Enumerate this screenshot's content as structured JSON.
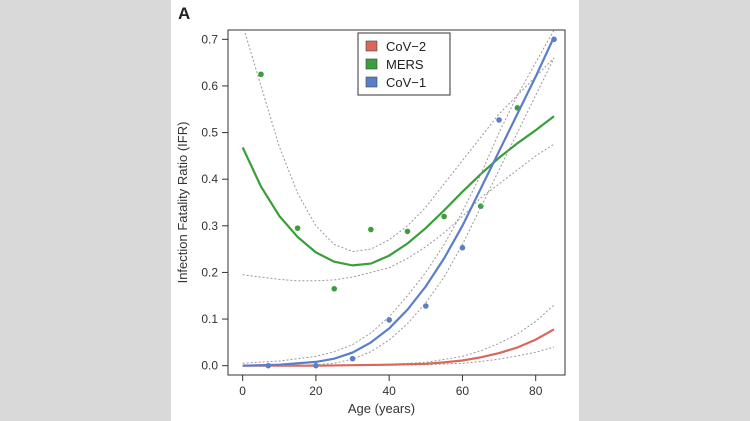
{
  "panel_label": "A",
  "chart_data": {
    "type": "scatter",
    "title": "",
    "xlabel": "Age (years)",
    "ylabel": "Infection Fatality Ratio (IFR)",
    "xlim": [
      -4,
      88
    ],
    "ylim": [
      -0.02,
      0.72
    ],
    "xticks": [
      0,
      20,
      40,
      60,
      80
    ],
    "yticks": [
      0.0,
      0.1,
      0.2,
      0.3,
      0.4,
      0.5,
      0.6,
      0.7
    ],
    "ytick_labels": [
      "0.0",
      "0.1",
      "0.2",
      "0.3",
      "0.4",
      "0.5",
      "0.6",
      "0.7"
    ],
    "legend_position": "top-center",
    "grid": false,
    "series": [
      {
        "name": "CoV−2",
        "color": "#d9675a",
        "points": [],
        "fit": {
          "x": [
            0,
            10,
            20,
            30,
            40,
            50,
            55,
            60,
            65,
            70,
            75,
            80,
            85
          ],
          "y": [
            0.0,
            0.0,
            0.0,
            0.001,
            0.002,
            0.004,
            0.007,
            0.011,
            0.018,
            0.027,
            0.039,
            0.056,
            0.078
          ]
        },
        "ci_upper": {
          "x": [
            0,
            20,
            40,
            50,
            60,
            65,
            70,
            75,
            80,
            85
          ],
          "y": [
            0.0,
            0.0,
            0.003,
            0.007,
            0.02,
            0.032,
            0.048,
            0.068,
            0.095,
            0.13
          ]
        },
        "ci_lower": {
          "x": [
            0,
            20,
            40,
            50,
            60,
            65,
            70,
            75,
            80,
            85
          ],
          "y": [
            0.0,
            0.0,
            0.001,
            0.002,
            0.005,
            0.009,
            0.014,
            0.021,
            0.029,
            0.04
          ]
        }
      },
      {
        "name": "MERS",
        "color": "#3a9e3a",
        "points": {
          "x": [
            5,
            15,
            25,
            35,
            45,
            55,
            65,
            75
          ],
          "y": [
            0.625,
            0.295,
            0.165,
            0.292,
            0.288,
            0.32,
            0.342,
            0.553
          ]
        },
        "fit": {
          "x": [
            0,
            5,
            10,
            15,
            20,
            25,
            30,
            35,
            40,
            45,
            50,
            55,
            60,
            65,
            70,
            75,
            80,
            85
          ],
          "y": [
            0.468,
            0.384,
            0.321,
            0.276,
            0.243,
            0.223,
            0.215,
            0.219,
            0.236,
            0.262,
            0.295,
            0.333,
            0.373,
            0.411,
            0.446,
            0.477,
            0.505,
            0.535
          ]
        },
        "ci_upper": {
          "x": [
            0,
            5,
            10,
            15,
            20,
            25,
            30,
            35,
            40,
            45,
            50,
            55,
            60,
            65,
            70,
            75,
            80,
            85
          ],
          "y": [
            0.73,
            0.6,
            0.47,
            0.37,
            0.3,
            0.26,
            0.245,
            0.25,
            0.27,
            0.3,
            0.34,
            0.39,
            0.44,
            0.49,
            0.54,
            0.58,
            0.62,
            0.66
          ]
        },
        "ci_lower": {
          "x": [
            0,
            5,
            10,
            15,
            20,
            25,
            30,
            35,
            40,
            45,
            50,
            55,
            60,
            65,
            70,
            75,
            80,
            85
          ],
          "y": [
            0.195,
            0.19,
            0.185,
            0.182,
            0.182,
            0.184,
            0.19,
            0.2,
            0.21,
            0.23,
            0.255,
            0.285,
            0.32,
            0.36,
            0.39,
            0.42,
            0.45,
            0.475
          ]
        }
      },
      {
        "name": "CoV−1",
        "color": "#5b7fc7",
        "points": {
          "x": [
            7,
            20,
            30,
            40,
            50,
            60,
            70,
            85
          ],
          "y": [
            0.0,
            0.0,
            0.015,
            0.098,
            0.128,
            0.253,
            0.527,
            0.7
          ]
        },
        "fit": {
          "x": [
            0,
            10,
            20,
            25,
            30,
            35,
            40,
            45,
            50,
            55,
            60,
            65,
            70,
            75,
            80,
            85
          ],
          "y": [
            0.0,
            0.002,
            0.008,
            0.015,
            0.028,
            0.05,
            0.08,
            0.12,
            0.17,
            0.23,
            0.3,
            0.38,
            0.46,
            0.54,
            0.62,
            0.705
          ]
        },
        "ci_upper": {
          "x": [
            0,
            10,
            20,
            25,
            30,
            35,
            40,
            45,
            50,
            55,
            60,
            65,
            70,
            75,
            80,
            85
          ],
          "y": [
            0.005,
            0.01,
            0.02,
            0.03,
            0.045,
            0.07,
            0.105,
            0.15,
            0.2,
            0.26,
            0.33,
            0.41,
            0.5,
            0.58,
            0.65,
            0.72
          ]
        },
        "ci_lower": {
          "x": [
            0,
            10,
            20,
            25,
            30,
            35,
            40,
            45,
            50,
            55,
            60,
            65,
            70,
            75,
            80,
            85
          ],
          "y": [
            0.0,
            0.0,
            0.002,
            0.005,
            0.014,
            0.03,
            0.055,
            0.09,
            0.135,
            0.19,
            0.26,
            0.34,
            0.42,
            0.5,
            0.58,
            0.66
          ]
        }
      }
    ]
  }
}
